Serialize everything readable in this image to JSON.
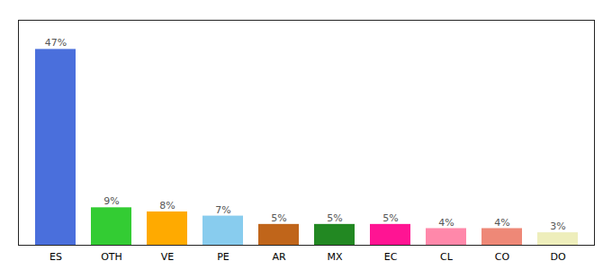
{
  "chart_data": {
    "type": "bar",
    "categories": [
      "ES",
      "OTH",
      "VE",
      "PE",
      "AR",
      "MX",
      "EC",
      "CL",
      "CO",
      "DO"
    ],
    "values": [
      47,
      9,
      8,
      7,
      5,
      5,
      5,
      4,
      4,
      3
    ],
    "value_labels": [
      "47%",
      "9%",
      "8%",
      "7%",
      "5%",
      "5%",
      "5%",
      "4%",
      "4%",
      "3%"
    ],
    "colors": [
      "#4a6fdc",
      "#33cc33",
      "#ffaa00",
      "#88ccee",
      "#c0651a",
      "#228822",
      "#ff1493",
      "#ff88aa",
      "#ee8877",
      "#eeeebb"
    ],
    "ylim": [
      0,
      54
    ],
    "data_labels": true,
    "tick_labels": "x",
    "grid": false
  }
}
